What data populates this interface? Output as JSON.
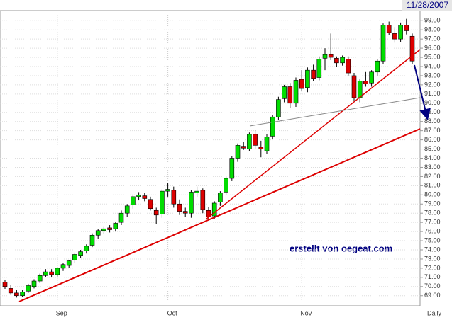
{
  "chart_data": {
    "type": "candlestick",
    "title": "11/28/2007",
    "x_label": "Daily",
    "annotation": "erstellt von oegeat.com",
    "categories": [
      null,
      null,
      null,
      null,
      null,
      null,
      null,
      null,
      null,
      "Sep",
      null,
      null,
      null,
      null,
      null,
      null,
      null,
      null,
      null,
      null,
      null,
      null,
      null,
      null,
      null,
      null,
      null,
      null,
      "Oct",
      null,
      null,
      null,
      null,
      null,
      null,
      null,
      null,
      null,
      null,
      null,
      null,
      null,
      null,
      null,
      null,
      null,
      null,
      null,
      null,
      null,
      null,
      "Nov",
      null,
      null,
      null,
      null,
      null,
      null,
      null,
      null,
      null,
      null,
      null,
      null,
      null,
      null,
      null,
      null,
      null,
      null,
      null
    ],
    "open": [
      70.5,
      69.8,
      69.3,
      69.0,
      69.5,
      70.0,
      70.6,
      71.2,
      71.6,
      71.3,
      72.0,
      72.3,
      72.9,
      73.4,
      73.9,
      74.5,
      75.6,
      76.1,
      76.4,
      76.3,
      77.0,
      78.0,
      78.9,
      79.8,
      79.9,
      79.5,
      78.3,
      77.9,
      80.4,
      80.5,
      79.0,
      78.2,
      78.0,
      80.2,
      80.5,
      78.3,
      77.7,
      79.2,
      80.3,
      81.8,
      84.0,
      85.3,
      85.0,
      86.6,
      85.2,
      84.8,
      86.4,
      88.5,
      90.5,
      91.8,
      90.0,
      92.6,
      91.7,
      93.6,
      92.8,
      94.9,
      95.3,
      94.9,
      94.4,
      94.8,
      93.0,
      90.6,
      92.4,
      92.2,
      93.4,
      94.6,
      98.5,
      97.6,
      97.0,
      98.5,
      97.3
    ],
    "high": [
      70.7,
      70.2,
      69.6,
      69.6,
      70.3,
      70.8,
      71.4,
      71.9,
      71.9,
      72.1,
      72.6,
      72.9,
      73.7,
      74.0,
      74.6,
      75.8,
      76.3,
      76.5,
      76.7,
      77.0,
      78.3,
      79.0,
      80.0,
      80.3,
      80.2,
      79.8,
      78.6,
      80.6,
      81.3,
      80.9,
      79.5,
      78.6,
      80.5,
      80.9,
      80.7,
      78.7,
      79.3,
      80.4,
      82.0,
      84.2,
      85.6,
      85.8,
      86.8,
      87.1,
      85.9,
      86.6,
      88.7,
      90.7,
      92.0,
      92.2,
      92.8,
      93.6,
      93.9,
      94.2,
      95.1,
      96.0,
      97.6,
      95.1,
      95.2,
      95.1,
      93.3,
      92.6,
      93.4,
      93.6,
      94.8,
      98.7,
      98.9,
      98.3,
      98.8,
      99.2,
      97.6
    ],
    "low": [
      69.7,
      69.1,
      68.8,
      68.9,
      69.3,
      69.8,
      70.4,
      71.0,
      71.0,
      71.1,
      71.7,
      72.0,
      72.6,
      73.1,
      73.6,
      74.3,
      75.2,
      75.7,
      75.9,
      76.0,
      76.7,
      77.6,
      78.5,
      79.4,
      79.3,
      78.3,
      76.8,
      77.5,
      79.8,
      78.6,
      77.8,
      77.6,
      77.5,
      79.8,
      78.0,
      77.2,
      77.4,
      78.8,
      80.0,
      81.5,
      83.6,
      84.9,
      84.8,
      85.0,
      84.1,
      84.5,
      86.1,
      88.2,
      90.1,
      89.5,
      89.6,
      91.3,
      91.2,
      92.4,
      92.5,
      93.6,
      94.7,
      94.0,
      94.1,
      93.0,
      90.2,
      90.1,
      91.8,
      91.8,
      93.0,
      94.3,
      97.4,
      96.6,
      96.7,
      97.5,
      94.3
    ],
    "close": [
      70.0,
      69.3,
      69.0,
      69.4,
      70.1,
      70.6,
      71.2,
      71.6,
      71.3,
      72.0,
      72.4,
      72.8,
      73.5,
      73.8,
      74.4,
      75.6,
      76.1,
      76.3,
      76.2,
      76.9,
      78.0,
      78.8,
      79.8,
      80.0,
      79.6,
      78.5,
      77.8,
      80.4,
      80.6,
      79.0,
      78.2,
      78.0,
      80.3,
      80.4,
      78.4,
      77.6,
      79.1,
      80.2,
      81.8,
      84.0,
      85.4,
      85.1,
      86.6,
      85.4,
      85.0,
      86.3,
      88.5,
      90.4,
      91.8,
      90.0,
      92.5,
      91.6,
      93.6,
      92.7,
      94.8,
      95.3,
      95.0,
      94.4,
      95.0,
      93.3,
      90.6,
      92.4,
      92.1,
      93.4,
      94.6,
      98.5,
      97.7,
      97.0,
      98.5,
      97.9,
      94.6
    ],
    "up_color": "#00dd00",
    "down_color": "#dd0000",
    "ylim": [
      67.9,
      100.1
    ],
    "yticks": [
      {
        "value": 69,
        "label": "69.00"
      },
      {
        "value": 70,
        "label": "70.00"
      },
      {
        "value": 71,
        "label": "71.00"
      },
      {
        "value": 72,
        "label": "72.00"
      },
      {
        "value": 73,
        "label": "73.00"
      },
      {
        "value": 74,
        "label": "74.00"
      },
      {
        "value": 75,
        "label": "75.00"
      },
      {
        "value": 76,
        "label": "76.00"
      },
      {
        "value": 77,
        "label": "77.00"
      },
      {
        "value": 78,
        "label": "78.00"
      },
      {
        "value": 79,
        "label": "79.00"
      },
      {
        "value": 80,
        "label": "80.00"
      },
      {
        "value": 81,
        "label": "81.00"
      },
      {
        "value": 82,
        "label": "82.00"
      },
      {
        "value": 83,
        "label": "83.00"
      },
      {
        "value": 84,
        "label": "84.00"
      },
      {
        "value": 85,
        "label": "85.00"
      },
      {
        "value": 86,
        "label": "86.00"
      },
      {
        "value": 87,
        "label": "87.00"
      },
      {
        "value": 88,
        "label": "88.00"
      },
      {
        "value": 89,
        "label": "89.00"
      },
      {
        "value": 90,
        "label": "90.00"
      },
      {
        "value": 91,
        "label": "91.00"
      },
      {
        "value": 92,
        "label": "92.00"
      },
      {
        "value": 93,
        "label": "93.00"
      },
      {
        "value": 94,
        "label": "94.00"
      },
      {
        "value": 95,
        "label": "95.00"
      },
      {
        "value": 96,
        "label": "96.00"
      },
      {
        "value": 97,
        "label": "97.00"
      },
      {
        "value": 98,
        "label": "98.00"
      },
      {
        "value": 99,
        "label": "99.00"
      }
    ],
    "grid": true
  }
}
